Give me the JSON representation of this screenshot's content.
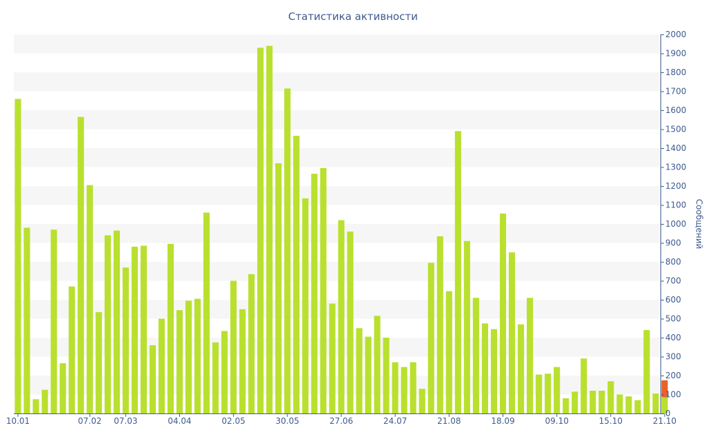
{
  "chart_data": {
    "type": "bar",
    "title": "Статистика активности",
    "ylabel": "Сообщений",
    "xlabel": "",
    "ylim": [
      0,
      2000
    ],
    "y_ticks": [
      0,
      100,
      200,
      300,
      400,
      500,
      600,
      700,
      800,
      900,
      1000,
      1100,
      1200,
      1300,
      1400,
      1500,
      1600,
      1700,
      1800,
      1900,
      2000
    ],
    "y_axis_side": "right",
    "grid": "alternating horizontal bands",
    "x_tick_labels": [
      {
        "label": "10.01",
        "index": 0
      },
      {
        "label": "07.02",
        "index": 8
      },
      {
        "label": "07.03",
        "index": 12
      },
      {
        "label": "04.04",
        "index": 18
      },
      {
        "label": "02.05",
        "index": 24
      },
      {
        "label": "30.05",
        "index": 30
      },
      {
        "label": "27.06",
        "index": 36
      },
      {
        "label": "24.07",
        "index": 42
      },
      {
        "label": "21.08",
        "index": 48
      },
      {
        "label": "18.09",
        "index": 54
      },
      {
        "label": "09.10",
        "index": 60
      },
      {
        "label": "15.10",
        "index": 66
      },
      {
        "label": "21.10",
        "index": 72
      }
    ],
    "values": [
      1660,
      980,
      75,
      125,
      970,
      265,
      670,
      1565,
      1205,
      535,
      940,
      965,
      770,
      880,
      885,
      360,
      500,
      895,
      545,
      595,
      605,
      1060,
      375,
      435,
      700,
      550,
      735,
      1930,
      1940,
      1320,
      1715,
      1465,
      1135,
      1265,
      1295,
      580,
      1020,
      960,
      450,
      405,
      515,
      400,
      270,
      245,
      270,
      130,
      795,
      935,
      645,
      1490,
      910,
      610,
      475,
      445,
      1055,
      850,
      470,
      610,
      205,
      210,
      245,
      80,
      115,
      290,
      120,
      120,
      170,
      100,
      90,
      70,
      440,
      105,
      175
    ],
    "highlight": {
      "index": 72,
      "value": 175,
      "split_at": 85
    },
    "colors": {
      "bar": "#b9e02e",
      "highlight": "#e8632a",
      "band": "#f6f6f6",
      "axis": "#3e5a8e",
      "text": "#3e5a8e"
    }
  }
}
